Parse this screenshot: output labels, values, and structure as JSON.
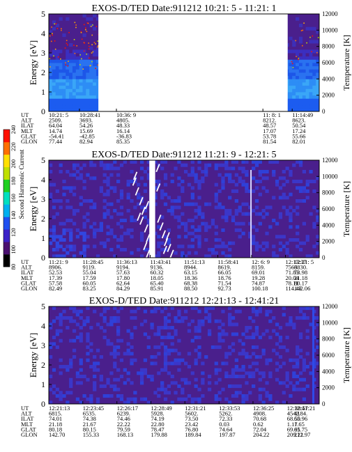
{
  "chart_data": [
    {
      "type": "heatmap",
      "title": "EXOS-D/TED   Date:911212  10:21: 5 - 11:21: 1",
      "ylabel": "Energy [eV]",
      "ylabel2": "Temperature [K]",
      "ylim": [
        0,
        5
      ],
      "y_ticks": [
        "0",
        "1",
        "2",
        "3",
        "4",
        "5"
      ],
      "ylim2": [
        0,
        12000
      ],
      "y2_ticks": [
        "0",
        "2000",
        "4000",
        "6000",
        "8000",
        "10000",
        "12000"
      ],
      "xlim": [
        0,
        60
      ],
      "data_gaps": [
        [
          11,
          53
        ]
      ],
      "row_labels": [
        "UT",
        "ALT",
        "ILAT",
        "MLT",
        "GLAT",
        "GLON"
      ],
      "columns": [
        {
          "x": 0,
          "values": [
            "10:21: 5",
            "2509.",
            "64.04",
            "14.74",
            "-54.41",
            "77.44"
          ]
        },
        {
          "x": 6.8,
          "values": [
            "10:28:41",
            "3693.",
            "54.26",
            "15.69",
            "-42.85",
            "82.94"
          ]
        },
        {
          "x": 15,
          "values": [
            "10:36: 9",
            "4805.",
            "48.33",
            "16.14",
            "-36.83",
            "85.35"
          ]
        },
        {
          "x": 47.5,
          "values": [
            "11: 8: 1",
            "8212.",
            "48.57",
            "17.07",
            "53.78",
            "81.54"
          ]
        },
        {
          "x": 54,
          "values": [
            "11:14:49",
            "8623.",
            "50.54",
            "17.24",
            "55.66",
            "82.01"
          ]
        }
      ]
    },
    {
      "type": "heatmap",
      "title": "EXOS-D/TED   Date:911212  11:21: 9 - 12:21: 5",
      "ylabel": "Energy [eV]",
      "ylabel2": "Temperature [K]",
      "ylim": [
        0,
        5
      ],
      "y_ticks": [
        "0",
        "1",
        "2",
        "3",
        "4",
        "5"
      ],
      "ylim2": [
        0,
        12000
      ],
      "y2_ticks": [
        "0",
        "2000",
        "4000",
        "6000",
        "8000",
        "10000",
        "12000"
      ],
      "xlim": [
        0,
        60
      ],
      "data_gaps": [
        [
          22.3,
          23.6
        ]
      ],
      "row_labels": [
        "UT",
        "ALT",
        "ILAT",
        "MLT",
        "GLAT",
        "GLON"
      ],
      "columns": [
        {
          "x": 0,
          "values": [
            "11:21: 9",
            "8906.",
            "52.53",
            "17.39",
            "57.58",
            "82.49"
          ]
        },
        {
          "x": 7.5,
          "values": [
            "11:28:45",
            "9119.",
            "55.04",
            "17.59",
            "60.05",
            "83.25"
          ]
        },
        {
          "x": 15,
          "values": [
            "11:36:13",
            "9194.",
            "57.63",
            "17.80",
            "62.64",
            "84.29"
          ]
        },
        {
          "x": 22.5,
          "values": [
            "11:43:41",
            "9136.",
            "60.32",
            "18.05",
            "65.40",
            "85.91"
          ]
        },
        {
          "x": 30,
          "values": [
            "11:51:13",
            "8944.",
            "63.15",
            "18.36",
            "68.38",
            "88.50"
          ]
        },
        {
          "x": 37.5,
          "values": [
            "11:58:41",
            "8619.",
            "66.05",
            "18.76",
            "71.54",
            "92.73"
          ]
        },
        {
          "x": 45,
          "values": [
            "12: 6: 9",
            "8159.",
            "69.01",
            "19.28",
            "74.87",
            "100.18"
          ]
        },
        {
          "x": 52.5,
          "values": [
            "12:13:37",
            "7563.",
            "71.83",
            "20.04",
            "78.11",
            "114.43"
          ]
        },
        {
          "x": 60,
          "values": [
            "12:21: 5",
            "6830.",
            "73.98",
            "21.18",
            "80.17",
            "142.06"
          ]
        }
      ]
    },
    {
      "type": "heatmap",
      "title": "EXOS-D/TED   Date:911212  12:21:13 - 12:41:21",
      "ylabel": "Energy [eV]",
      "ylabel2": "Temperature [K]",
      "ylim": [
        0,
        5
      ],
      "y_ticks": [
        "0",
        "1",
        "2",
        "3",
        "4",
        "5"
      ],
      "ylim2": [
        0,
        12000
      ],
      "y2_ticks": [
        "0",
        "2000",
        "4000",
        "6000",
        "8000",
        "10000",
        "12000"
      ],
      "xlim": [
        0,
        20.13
      ],
      "data_gaps": [],
      "row_labels": [
        "UT",
        "ALT",
        "ILAT",
        "MLT",
        "GLAT",
        "GLON"
      ],
      "columns": [
        {
          "x": 0,
          "values": [
            "12:21:13",
            "6815.",
            "74.01",
            "21.18",
            "80.18",
            "142.70"
          ]
        },
        {
          "x": 2.53,
          "values": [
            "12:23:45",
            "6535.",
            "74.38",
            "21.67",
            "80.15",
            "155.33"
          ]
        },
        {
          "x": 5.07,
          "values": [
            "12:26:17",
            "6239.",
            "74.46",
            "22.22",
            "79.59",
            "168.13"
          ]
        },
        {
          "x": 7.6,
          "values": [
            "12:28:49",
            "5928.",
            "74.19",
            "22.80",
            "78.47",
            "179.88"
          ]
        },
        {
          "x": 10.13,
          "values": [
            "12:31:21",
            "5602.",
            "73.50",
            "23.42",
            "76.80",
            "189.84"
          ]
        },
        {
          "x": 12.67,
          "values": [
            "12:33:53",
            "5262.",
            "72.33",
            "0.03",
            "74.64",
            "197.87"
          ]
        },
        {
          "x": 15.2,
          "values": [
            "12:36:25",
            "4908.",
            "70.68",
            "0.62",
            "72.04",
            "204.22"
          ]
        },
        {
          "x": 17.73,
          "values": [
            "12:38:57",
            "4542.",
            "68.50",
            "1.17",
            "69.01",
            "209.21"
          ]
        },
        {
          "x": 20.13,
          "values": [
            "12:41:21",
            "4184.",
            "65.96",
            "1.65",
            "65.75",
            "212.97"
          ]
        }
      ]
    }
  ],
  "colorbar": {
    "label": "Second Harmonic Current",
    "ticks": [
      "80",
      "100",
      "120",
      "140",
      "160",
      "180",
      "200",
      "220",
      "240"
    ],
    "range": [
      80,
      240
    ],
    "colors": [
      "#000000",
      "#4a1070",
      "#3b22c8",
      "#2050f0",
      "#00b0f0",
      "#00e0c0",
      "#20d020",
      "#c0e000",
      "#ffe000",
      "#ff7000",
      "#ff1000"
    ]
  }
}
